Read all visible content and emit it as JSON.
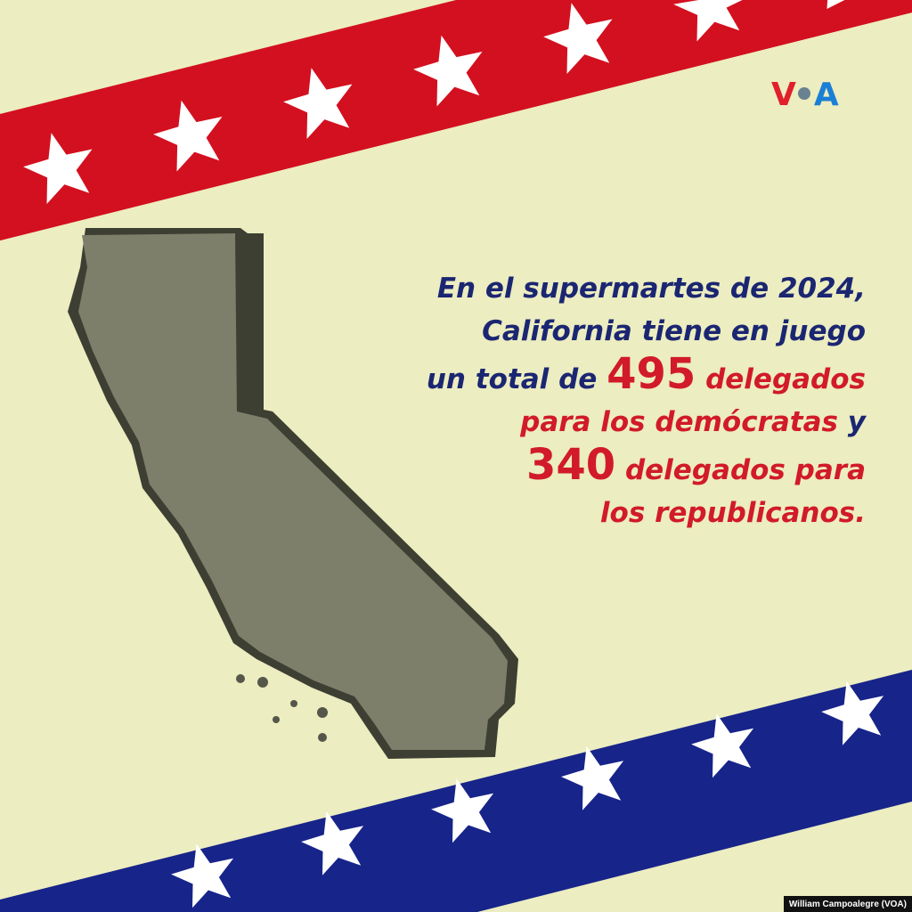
{
  "logo": {
    "text": "VOA"
  },
  "message": {
    "line1": "En el supermartes de 2024,",
    "line2": "California tiene en juego",
    "line3_a": "un total de ",
    "democrat_delegates": "495",
    "line3_b": " delegados",
    "line4_a": "para los demócratas",
    "line4_b": " y",
    "republican_delegates": "340",
    "line5": " delegados para",
    "line6": "los republicanos."
  },
  "credit": "William Campoalegre (VOA)",
  "colors": {
    "background": "#ecedc0",
    "red_stripe": "#d3101f",
    "blue_stripe": "#17248a",
    "navy_text": "#1b2672",
    "red_text": "#d11a2a",
    "map": "#7d7f6a"
  }
}
